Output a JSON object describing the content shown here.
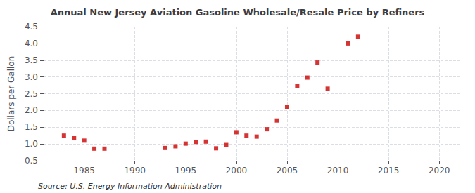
{
  "chart_data": {
    "type": "scatter",
    "title": "Annual New Jersey Aviation Gasoline Wholesale/Resale Price by Refiners",
    "ylabel": "Dollars per Gallon",
    "annotation": "Source: U.S. Energy Information Administration",
    "x": [
      1983,
      1984,
      1985,
      1986,
      1987,
      1993,
      1994,
      1995,
      1996,
      1997,
      1998,
      1999,
      2000,
      2001,
      2002,
      2003,
      2004,
      2005,
      2006,
      2007,
      2008,
      2009,
      2011,
      2012
    ],
    "values": [
      1.25,
      1.17,
      1.1,
      0.86,
      0.86,
      0.88,
      0.93,
      1.01,
      1.06,
      1.07,
      0.87,
      0.97,
      1.35,
      1.25,
      1.22,
      1.44,
      1.7,
      2.1,
      2.72,
      2.98,
      3.43,
      2.65,
      4.0,
      4.2
    ],
    "color": "#cc0000",
    "marker": "square",
    "grid": true,
    "xlim": [
      1981,
      2022
    ],
    "xticks": [
      1985,
      1990,
      1995,
      2000,
      2005,
      2010,
      2015,
      2020
    ],
    "ylim": [
      0.5,
      4.5
    ],
    "yticks": [
      0.5,
      {
        "value": 1.0,
        "label": "1.0"
      },
      1.5,
      {
        "value": 2.0,
        "label": "2.0"
      },
      2.5,
      {
        "value": 3.0,
        "label": "3.0"
      },
      3.5,
      {
        "value": 4.0,
        "label": "4.0"
      },
      4.5
    ]
  }
}
